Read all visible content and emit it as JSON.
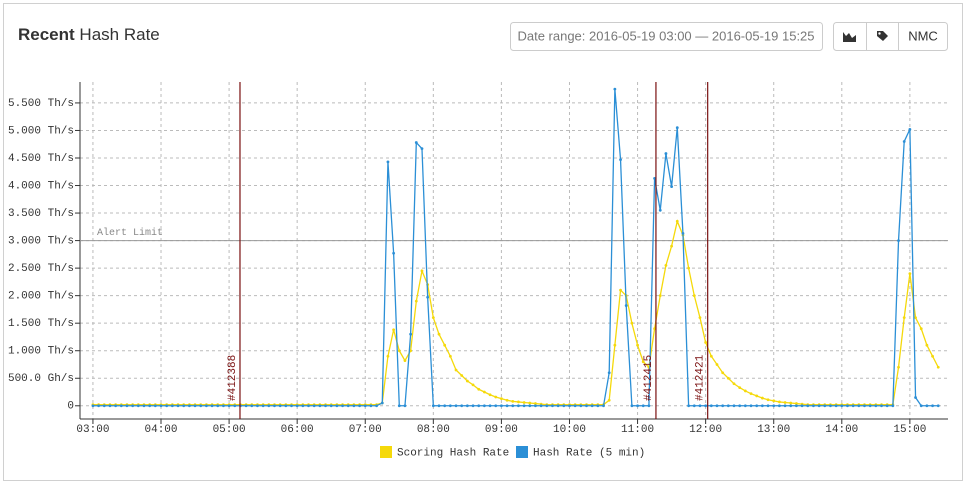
{
  "header": {
    "title_bold": "Recent",
    "title": "Hash Rate",
    "date_range": "Date range: 2016-05-19 03:00 — 2016-05-19 15:25",
    "button": "NMC"
  },
  "chart_data": {
    "type": "line",
    "x": [
      3,
      3.0833,
      3.1667,
      3.25,
      3.3333,
      3.4167,
      3.5,
      3.5833,
      3.6667,
      3.75,
      3.8333,
      3.9167,
      4,
      4.0833,
      4.1667,
      4.25,
      4.3333,
      4.4167,
      4.5,
      4.5833,
      4.6667,
      4.75,
      4.8333,
      4.9167,
      5,
      5.0833,
      5.1667,
      5.25,
      5.3333,
      5.4167,
      5.5,
      5.5833,
      5.6667,
      5.75,
      5.8333,
      5.9167,
      6,
      6.0833,
      6.1667,
      6.25,
      6.3333,
      6.4167,
      6.5,
      6.5833,
      6.6667,
      6.75,
      6.8333,
      6.9167,
      7,
      7.0833,
      7.1667,
      7.25,
      7.3333,
      7.4167,
      7.5,
      7.5833,
      7.6667,
      7.75,
      7.8333,
      7.9167,
      8,
      8.0833,
      8.1667,
      8.25,
      8.3333,
      8.4167,
      8.5,
      8.5833,
      8.6667,
      8.75,
      8.8333,
      8.9167,
      9,
      9.0833,
      9.1667,
      9.25,
      9.3333,
      9.4167,
      9.5,
      9.5833,
      9.6667,
      9.75,
      9.8333,
      9.9167,
      10,
      10.0833,
      10.1667,
      10.25,
      10.3333,
      10.4167,
      10.5,
      10.5833,
      10.6667,
      10.75,
      10.8333,
      10.9167,
      11,
      11.0833,
      11.1667,
      11.25,
      11.3333,
      11.4167,
      11.5,
      11.5833,
      11.6667,
      11.75,
      11.8333,
      11.9167,
      12,
      12.0833,
      12.1667,
      12.25,
      12.3333,
      12.4167,
      12.5,
      12.5833,
      12.6667,
      12.75,
      12.8333,
      12.9167,
      13,
      13.0833,
      13.1667,
      13.25,
      13.3333,
      13.4167,
      13.5,
      13.5833,
      13.6667,
      13.75,
      13.8333,
      13.9167,
      14,
      14.0833,
      14.1667,
      14.25,
      14.3333,
      14.4167,
      14.5,
      14.5833,
      14.6667,
      14.75,
      14.8333,
      14.9167,
      15,
      15.0833,
      15.1667,
      15.25,
      15.3333,
      15.4167
    ],
    "series": [
      {
        "name": "Scoring Hash Rate",
        "color": "#f5d90a",
        "values": [
          0.02,
          0.02,
          0.02,
          0.02,
          0.02,
          0.02,
          0.02,
          0.02,
          0.02,
          0.02,
          0.02,
          0.02,
          0.02,
          0.02,
          0.02,
          0.02,
          0.02,
          0.02,
          0.02,
          0.02,
          0.02,
          0.02,
          0.02,
          0.02,
          0.02,
          0.02,
          0.02,
          0.02,
          0.02,
          0.02,
          0.02,
          0.02,
          0.02,
          0.02,
          0.02,
          0.02,
          0.02,
          0.02,
          0.02,
          0.02,
          0.02,
          0.02,
          0.02,
          0.02,
          0.02,
          0.02,
          0.02,
          0.02,
          0.02,
          0.02,
          0.02,
          0.05,
          0.9,
          1.38,
          1.0,
          0.82,
          1.0,
          1.9,
          2.45,
          2.2,
          1.6,
          1.3,
          1.1,
          0.9,
          0.65,
          0.55,
          0.45,
          0.38,
          0.3,
          0.25,
          0.2,
          0.16,
          0.13,
          0.1,
          0.08,
          0.07,
          0.06,
          0.05,
          0.04,
          0.03,
          0.02,
          0.02,
          0.02,
          0.02,
          0.02,
          0.02,
          0.02,
          0.02,
          0.02,
          0.02,
          0.02,
          0.1,
          1.1,
          2.1,
          2.0,
          1.5,
          1.1,
          0.8,
          0.7,
          1.4,
          2.0,
          2.55,
          2.9,
          3.35,
          3.1,
          2.5,
          2.0,
          1.6,
          1.15,
          0.9,
          0.75,
          0.6,
          0.5,
          0.4,
          0.33,
          0.27,
          0.22,
          0.18,
          0.14,
          0.11,
          0.09,
          0.07,
          0.06,
          0.05,
          0.04,
          0.03,
          0.02,
          0.02,
          0.02,
          0.02,
          0.02,
          0.02,
          0.02,
          0.02,
          0.02,
          0.02,
          0.02,
          0.02,
          0.02,
          0.02,
          0.02,
          0.02,
          0.7,
          1.6,
          2.4,
          1.6,
          1.4,
          1.1,
          0.9,
          0.7
        ]
      },
      {
        "name": "Hash Rate (5 min)",
        "color": "#2b8fd6",
        "values": [
          0,
          0,
          0,
          0,
          0,
          0,
          0,
          0,
          0,
          0,
          0,
          0,
          0,
          0,
          0,
          0,
          0,
          0,
          0,
          0,
          0,
          0,
          0,
          0,
          0,
          0,
          0,
          0,
          0,
          0,
          0,
          0,
          0,
          0,
          0,
          0,
          0,
          0,
          0,
          0,
          0,
          0,
          0,
          0,
          0,
          0,
          0,
          0,
          0,
          0,
          0,
          0.05,
          4.43,
          2.77,
          0,
          0,
          1.3,
          4.78,
          4.67,
          1.97,
          0,
          0,
          0,
          0,
          0,
          0,
          0,
          0,
          0,
          0,
          0,
          0,
          0,
          0,
          0,
          0,
          0,
          0,
          0,
          0,
          0,
          0,
          0,
          0,
          0,
          0,
          0,
          0,
          0,
          0,
          0,
          0.6,
          5.75,
          4.47,
          1.82,
          0,
          0,
          0,
          0,
          4.13,
          3.55,
          4.58,
          3.98,
          5.05,
          3.13,
          0,
          0,
          0,
          0,
          0,
          0,
          0,
          0,
          0,
          0,
          0,
          0,
          0,
          0,
          0,
          0,
          0,
          0,
          0,
          0,
          0,
          0,
          0,
          0,
          0,
          0,
          0,
          0,
          0,
          0,
          0,
          0,
          0,
          0,
          0,
          0,
          0,
          3,
          4.8,
          5.02,
          0.15,
          0,
          0,
          0,
          0
        ]
      }
    ],
    "xlim": [
      2.81,
      15.56
    ],
    "xticks": [
      {
        "value": 3,
        "label": "03:00"
      },
      {
        "value": 4,
        "label": "04:00"
      },
      {
        "value": 5,
        "label": "05:00"
      },
      {
        "value": 6,
        "label": "06:00"
      },
      {
        "value": 7,
        "label": "07:00"
      },
      {
        "value": 8,
        "label": "08:00"
      },
      {
        "value": 9,
        "label": "09:00"
      },
      {
        "value": 10,
        "label": "10:00"
      },
      {
        "value": 11,
        "label": "11:00"
      },
      {
        "value": 12,
        "label": "12:00"
      },
      {
        "value": 13,
        "label": "13:00"
      },
      {
        "value": 14,
        "label": "14:00"
      },
      {
        "value": 15,
        "label": "15:00"
      }
    ],
    "ylim": [
      -0.24,
      5.88
    ],
    "yticks": [
      0,
      {
        "value": 0.5,
        "label": "500.0 Gh/s"
      },
      {
        "value": 1,
        "label": "1.000 Th/s"
      },
      {
        "value": 1.5,
        "label": "1.500 Th/s"
      },
      {
        "value": 2,
        "label": "2.000 Th/s"
      },
      {
        "value": 2.5,
        "label": "2.500 Th/s"
      },
      {
        "value": 3,
        "label": "3.000 Th/s"
      },
      {
        "value": 3.5,
        "label": "3.500 Th/s"
      },
      {
        "value": 4,
        "label": "4.000 Th/s"
      },
      {
        "value": 4.5,
        "label": "4.500 Th/s"
      },
      {
        "value": 5,
        "label": "5.000 Th/s"
      },
      {
        "value": 5.5,
        "label": "5.500 Th/s"
      }
    ],
    "grid": true,
    "alert": {
      "label": "Alert Limit",
      "value": 3
    },
    "markers": [
      {
        "label": "#412388",
        "x": 5.16
      },
      {
        "label": "#412415",
        "x": 11.27
      },
      {
        "label": "#412421",
        "x": 12.03
      }
    ],
    "legend": "bottom"
  }
}
